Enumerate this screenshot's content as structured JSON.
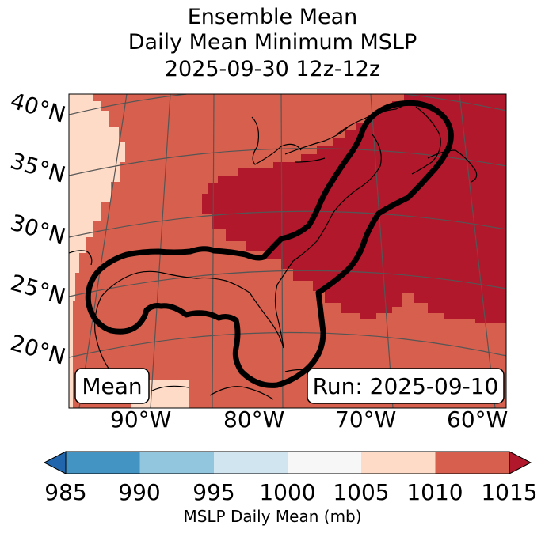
{
  "title": {
    "line1": "Ensemble Mean",
    "line2": "Daily Mean Minimum MSLP",
    "line3": "2025-09-30 12z-12z"
  },
  "map": {
    "lat_labels": [
      "40°N",
      "35°N",
      "30°N",
      "25°N",
      "20°N"
    ],
    "lon_labels": [
      "90°W",
      "80°W",
      "70°W",
      "60°W"
    ],
    "mean_box": "Mean",
    "run_box": "Run: 2025-09-10",
    "region_colors": {
      "band_1005_1010": "#fddbc7",
      "band_1010_1015": "#d6604d",
      "band_above_1015": "#b2182b"
    },
    "contour_color": "#000000",
    "coastline_color": "#000000",
    "gridline_color": "#555555"
  },
  "colorbar": {
    "ticks": [
      "985",
      "990",
      "995",
      "1000",
      "1005",
      "1010",
      "1015"
    ],
    "label": "MSLP Daily Mean (mb)",
    "below_color": "#2166ac",
    "above_color": "#b2182b",
    "colors": [
      "#4393c3",
      "#92c5de",
      "#d1e5f0",
      "#f7f7f7",
      "#fddbc7",
      "#d6604d"
    ]
  }
}
